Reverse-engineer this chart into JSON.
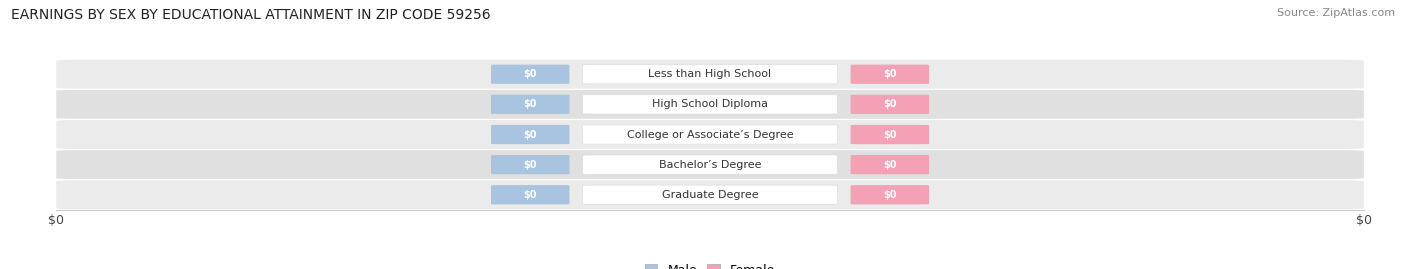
{
  "title": "EARNINGS BY SEX BY EDUCATIONAL ATTAINMENT IN ZIP CODE 59256",
  "source": "Source: ZipAtlas.com",
  "categories": [
    "Less than High School",
    "High School Diploma",
    "College or Associate’s Degree",
    "Bachelor’s Degree",
    "Graduate Degree"
  ],
  "male_values": [
    0,
    0,
    0,
    0,
    0
  ],
  "female_values": [
    0,
    0,
    0,
    0,
    0
  ],
  "male_color": "#a8c4e0",
  "female_color": "#f4a0b5",
  "bar_label_color": "#ffffff",
  "category_label_color": "#333333",
  "background_color": "#ffffff",
  "row_color_light": "#ebebeb",
  "row_color_dark": "#e0e0e0",
  "title_fontsize": 10,
  "source_fontsize": 8,
  "cat_label_fontsize": 8,
  "bar_label_fontsize": 7,
  "axis_tick_fontsize": 9,
  "axis_label": "$0",
  "figsize": [
    14.06,
    2.69
  ],
  "dpi": 100
}
